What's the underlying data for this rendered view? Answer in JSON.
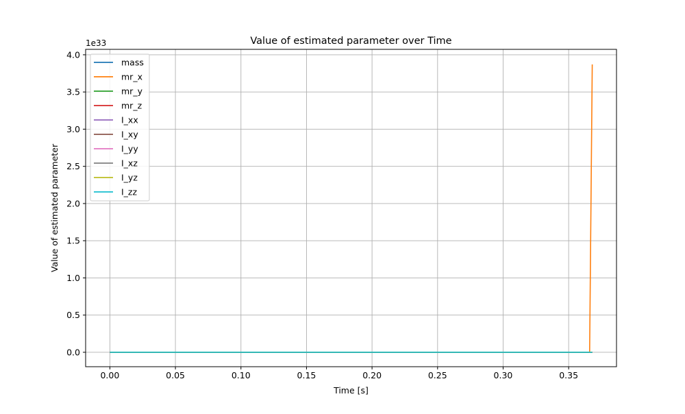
{
  "chart_data": {
    "type": "line",
    "title": "Value of estimated parameter over Time",
    "xlabel": "Time [s]",
    "ylabel": "Value of estimated parameter",
    "y_offset_label": "1e33",
    "xlim": [
      -0.0185,
      0.3865
    ],
    "ylim": [
      -0.194,
      4.073
    ],
    "y_scale_factor": 1e+33,
    "x_ticks": [
      0.0,
      0.05,
      0.1,
      0.15,
      0.2,
      0.25,
      0.3,
      0.35
    ],
    "x_tick_labels": [
      "0.00",
      "0.05",
      "0.10",
      "0.15",
      "0.20",
      "0.25",
      "0.30",
      "0.35"
    ],
    "y_ticks": [
      0.0,
      0.5,
      1.0,
      1.5,
      2.0,
      2.5,
      3.0,
      3.5,
      4.0
    ],
    "y_tick_labels": [
      "0.0",
      "0.5",
      "1.0",
      "1.5",
      "2.0",
      "2.5",
      "3.0",
      "3.5",
      "4.0"
    ],
    "grid": true,
    "legend_position": "top-left",
    "series": [
      {
        "name": "mass",
        "color": "#1f77b4",
        "x": [
          0.0,
          0.366,
          0.368
        ],
        "y": [
          0,
          0,
          0
        ]
      },
      {
        "name": "mr_x",
        "color": "#ff7f0e",
        "x": [
          0.0,
          0.366,
          0.368
        ],
        "y": [
          0,
          0,
          3.87
        ]
      },
      {
        "name": "mr_y",
        "color": "#2ca02c",
        "x": [
          0.0,
          0.366,
          0.368
        ],
        "y": [
          0,
          0,
          0
        ]
      },
      {
        "name": "mr_z",
        "color": "#d62728",
        "x": [
          0.0,
          0.366,
          0.368
        ],
        "y": [
          0,
          0,
          0
        ]
      },
      {
        "name": "I_xx",
        "color": "#9467bd",
        "x": [
          0.0,
          0.366,
          0.368
        ],
        "y": [
          0,
          0,
          0
        ]
      },
      {
        "name": "I_xy",
        "color": "#8c564b",
        "x": [
          0.0,
          0.366,
          0.368
        ],
        "y": [
          0,
          0,
          0
        ]
      },
      {
        "name": "I_yy",
        "color": "#e377c2",
        "x": [
          0.0,
          0.366,
          0.368
        ],
        "y": [
          0,
          0,
          0
        ]
      },
      {
        "name": "I_xz",
        "color": "#7f7f7f",
        "x": [
          0.0,
          0.366,
          0.368
        ],
        "y": [
          0,
          0,
          0
        ]
      },
      {
        "name": "I_yz",
        "color": "#bcbd22",
        "x": [
          0.0,
          0.366,
          0.368
        ],
        "y": [
          0,
          0,
          0
        ]
      },
      {
        "name": "I_zz",
        "color": "#17becf",
        "x": [
          0.0,
          0.366,
          0.368
        ],
        "y": [
          0,
          0,
          0
        ]
      }
    ]
  }
}
